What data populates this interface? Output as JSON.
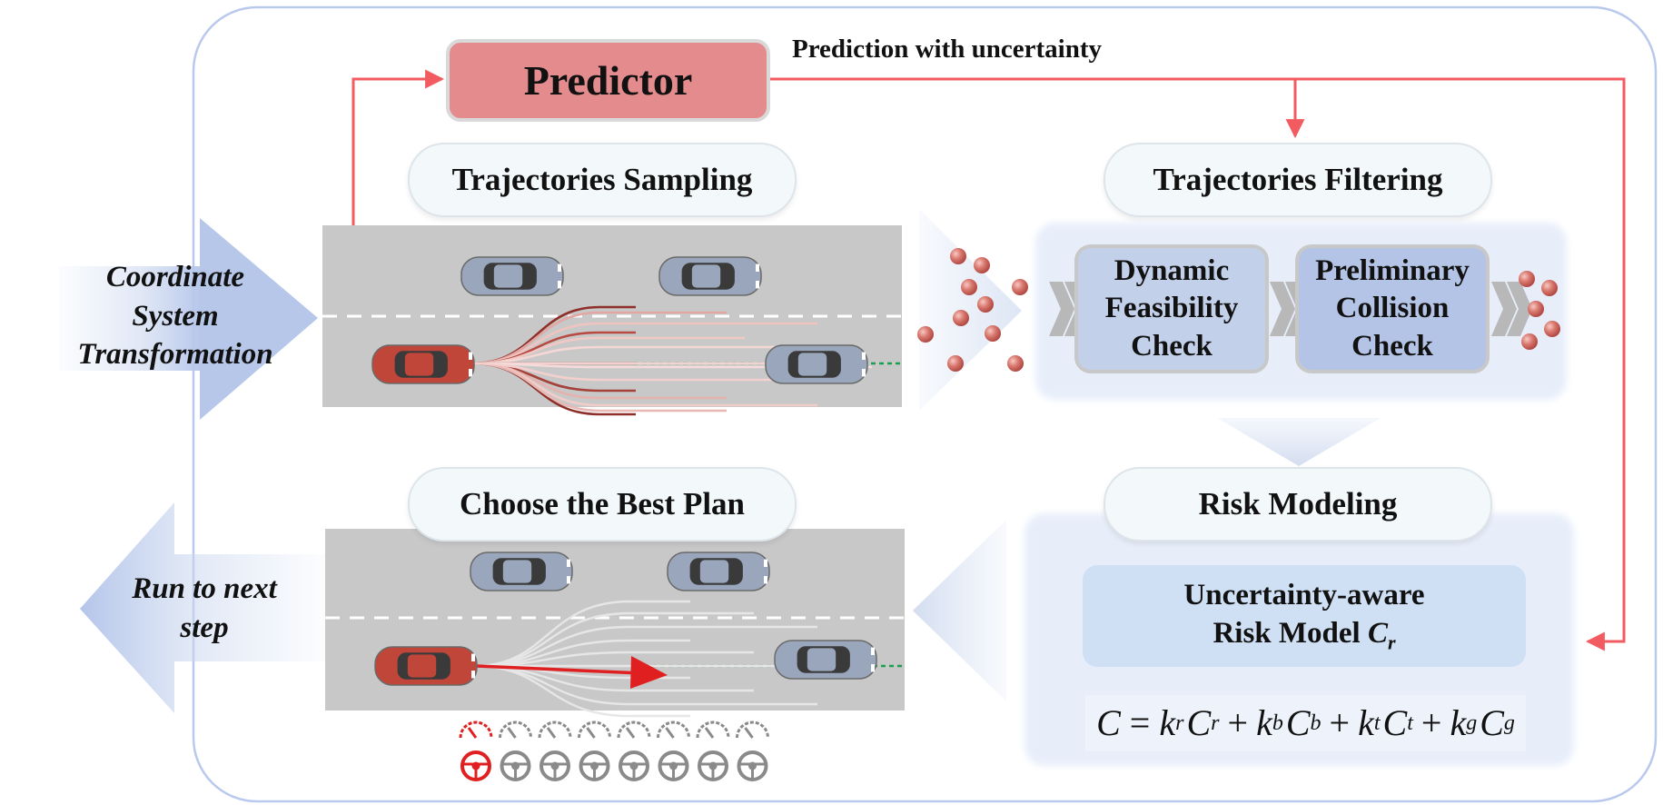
{
  "predictor": {
    "label": "Predictor"
  },
  "prediction_note": "Prediction with uncertainty",
  "left_in": {
    "label": "Coordinate\nSystem\nTransformation"
  },
  "left_out": {
    "label": "Run to next\nstep"
  },
  "stages": {
    "sampling": "Trajectories Sampling",
    "filtering": "Trajectories Filtering",
    "best_plan": "Choose the Best Plan",
    "risk_modeling": "Risk Modeling"
  },
  "checks": {
    "dynamic": "Dynamic\nFeasibility\nCheck",
    "collision": "Preliminary\nCollision\nCheck"
  },
  "risk_model": {
    "line1": "Uncertainty-aware",
    "line2_prefix": "Risk Model ",
    "symbol": "C",
    "symbol_sub": "r"
  },
  "formula": {
    "lhs": "C",
    "eq": "=",
    "terms": [
      {
        "k": "k",
        "k_sub": "r",
        "c": "C",
        "c_sub": "r"
      },
      {
        "k": "k",
        "k_sub": "b",
        "c": "C",
        "c_sub": "b"
      },
      {
        "k": "k",
        "k_sub": "t",
        "c": "C",
        "c_sub": "t"
      },
      {
        "k": "k",
        "k_sub": "g",
        "c": "C",
        "c_sub": "g"
      }
    ],
    "plus": "+"
  },
  "colors": {
    "red_arrow": "#f25c60",
    "predictor_fill": "#e48b8e",
    "ego_car": "#c0463a",
    "other_car": "#9aa6bb",
    "road": "#c8c8c8",
    "panel_blue": "#dfe8f7",
    "check_box": "#c2d0ea",
    "frame": "#b9c9ee",
    "selected_icon": "#e02020",
    "idle_icon": "#8a8a8a"
  },
  "gauges": {
    "count": 8,
    "selected_index": 0
  }
}
